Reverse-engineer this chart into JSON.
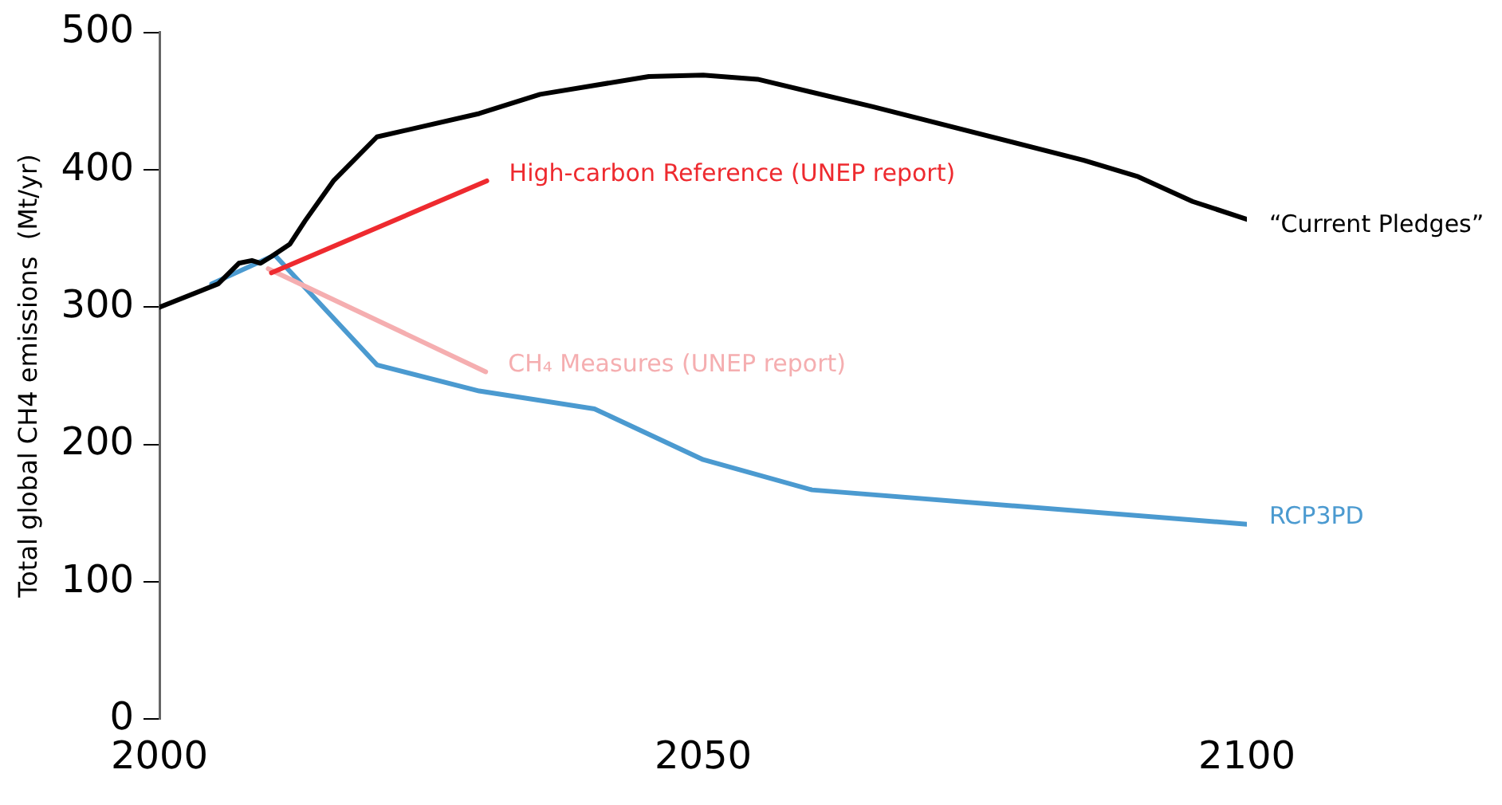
{
  "chart_data": {
    "type": "line",
    "ylabel": "Total global CH4 emissions  (Mt/yr)",
    "xlim": [
      2000,
      2100
    ],
    "xticks": [
      2000,
      2050,
      2100
    ],
    "ylim": [
      0,
      500
    ],
    "yticks": [
      0,
      100,
      200,
      300,
      400,
      500
    ],
    "grid": false,
    "legend": false,
    "marker": "none",
    "line_style": "solid",
    "series": [
      {
        "name": "“Current Pledges”",
        "color": "#000000",
        "x": [
          2000,
          2005.4,
          2007.3,
          2008.5,
          2009.3,
          2010.3,
          2012,
          2013.4,
          2016,
          2020,
          2029.4,
          2035,
          2045,
          2050,
          2055,
          2065.6,
          2085,
          2090,
          2095,
          2100
        ],
        "values": [
          300,
          317,
          332,
          334,
          332,
          337,
          346,
          363,
          392,
          424,
          441,
          455,
          468,
          469,
          466,
          446,
          407,
          395,
          377,
          364
        ]
      },
      {
        "name": "High-carbon Reference (UNEP report)",
        "color": "#ee2a2f",
        "x": [
          2010.3,
          2030.1
        ],
        "values": [
          325,
          392
        ]
      },
      {
        "name": "CH₄ Measures (UNEP report)",
        "color": "#f5aeb0",
        "x": [
          2010,
          2030
        ],
        "values": [
          328,
          253
        ]
      },
      {
        "name": "RCP3PD",
        "color": "#4b9ad0",
        "x": [
          2004.8,
          2010.6,
          2020,
          2029.4,
          2040,
          2050,
          2060,
          2100
        ],
        "values": [
          317,
          338,
          258,
          239,
          226,
          189,
          167,
          142
        ]
      }
    ]
  }
}
